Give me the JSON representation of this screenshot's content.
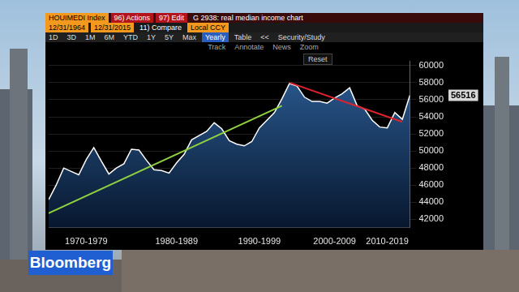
{
  "chart_data": {
    "type": "line",
    "title": "G 2938: real median income chart",
    "categories": [
      null,
      null,
      null,
      null,
      null,
      "1970-1979",
      null,
      null,
      null,
      null,
      null,
      null,
      null,
      null,
      null,
      null,
      null,
      "1980-1989",
      null,
      null,
      null,
      null,
      null,
      null,
      null,
      null,
      null,
      null,
      "1990-1999",
      null,
      null,
      null,
      null,
      null,
      null,
      null,
      null,
      null,
      "2000-2009",
      null,
      null,
      null,
      null,
      null,
      null,
      "2010-2019",
      null,
      null,
      null
    ],
    "series": [
      {
        "name": "HOUIMEDI Index",
        "type": "area",
        "color": "#ffffff",
        "values": [
          44300,
          46000,
          48000,
          47600,
          47200,
          49000,
          50400,
          48800,
          47300,
          48000,
          48500,
          50200,
          50100,
          48900,
          47800,
          47700,
          47400,
          48600,
          49600,
          51300,
          51800,
          52300,
          53300,
          52600,
          51200,
          50800,
          50600,
          51100,
          52700,
          53600,
          54500,
          56100,
          57900,
          57600,
          56300,
          55800,
          55800,
          55600,
          56200,
          56700,
          57400,
          55300,
          54900,
          53600,
          52800,
          52700,
          54500,
          53700,
          56516
        ]
      },
      {
        "type": "line",
        "color": "#8fd13f",
        "values": [
          42700,
          null,
          null,
          null,
          null,
          null,
          null,
          null,
          null,
          null,
          null,
          null,
          null,
          null,
          null,
          null,
          null,
          null,
          null,
          null,
          null,
          null,
          null,
          null,
          null,
          null,
          null,
          null,
          null,
          null,
          null,
          55300,
          null,
          null,
          null,
          null,
          null,
          null,
          null,
          null,
          null,
          null,
          null,
          null,
          null,
          null,
          null,
          null,
          null
        ]
      },
      {
        "type": "line",
        "color": "#e0222c",
        "values": [
          null,
          null,
          null,
          null,
          null,
          null,
          null,
          null,
          null,
          null,
          null,
          null,
          null,
          null,
          null,
          null,
          null,
          null,
          null,
          null,
          null,
          null,
          null,
          null,
          null,
          null,
          null,
          null,
          null,
          null,
          null,
          null,
          58000,
          null,
          null,
          null,
          null,
          null,
          null,
          null,
          null,
          null,
          null,
          null,
          null,
          null,
          null,
          53400,
          null
        ]
      }
    ],
    "ylim": [
      41000,
      60500
    ],
    "yticks": [
      42000,
      44000,
      46000,
      48000,
      50000,
      52000,
      54000,
      56000,
      58000,
      60000
    ],
    "grid": true,
    "annotations": [
      {
        "text": "56516",
        "value": 56516
      }
    ]
  },
  "toolbar": {
    "security": "HOUIMEDI Index",
    "buttons": [
      "96) Actions",
      "97) Edit"
    ],
    "start_date": "12/31/1964",
    "end_date": "12/31/2015",
    "compare": "11) Compare",
    "currency": "Local CCY",
    "periods": [
      "1D",
      "3D",
      "1M",
      "6M",
      "YTD",
      "1Y",
      "5Y",
      "Max"
    ],
    "frequency": "Yearly",
    "table": "Table",
    "collapse": "<<",
    "study": "Security/Study",
    "tools": [
      "Track",
      "Annotate",
      "News",
      "Zoom"
    ],
    "reset": "Reset"
  },
  "branding": "Bloomberg"
}
